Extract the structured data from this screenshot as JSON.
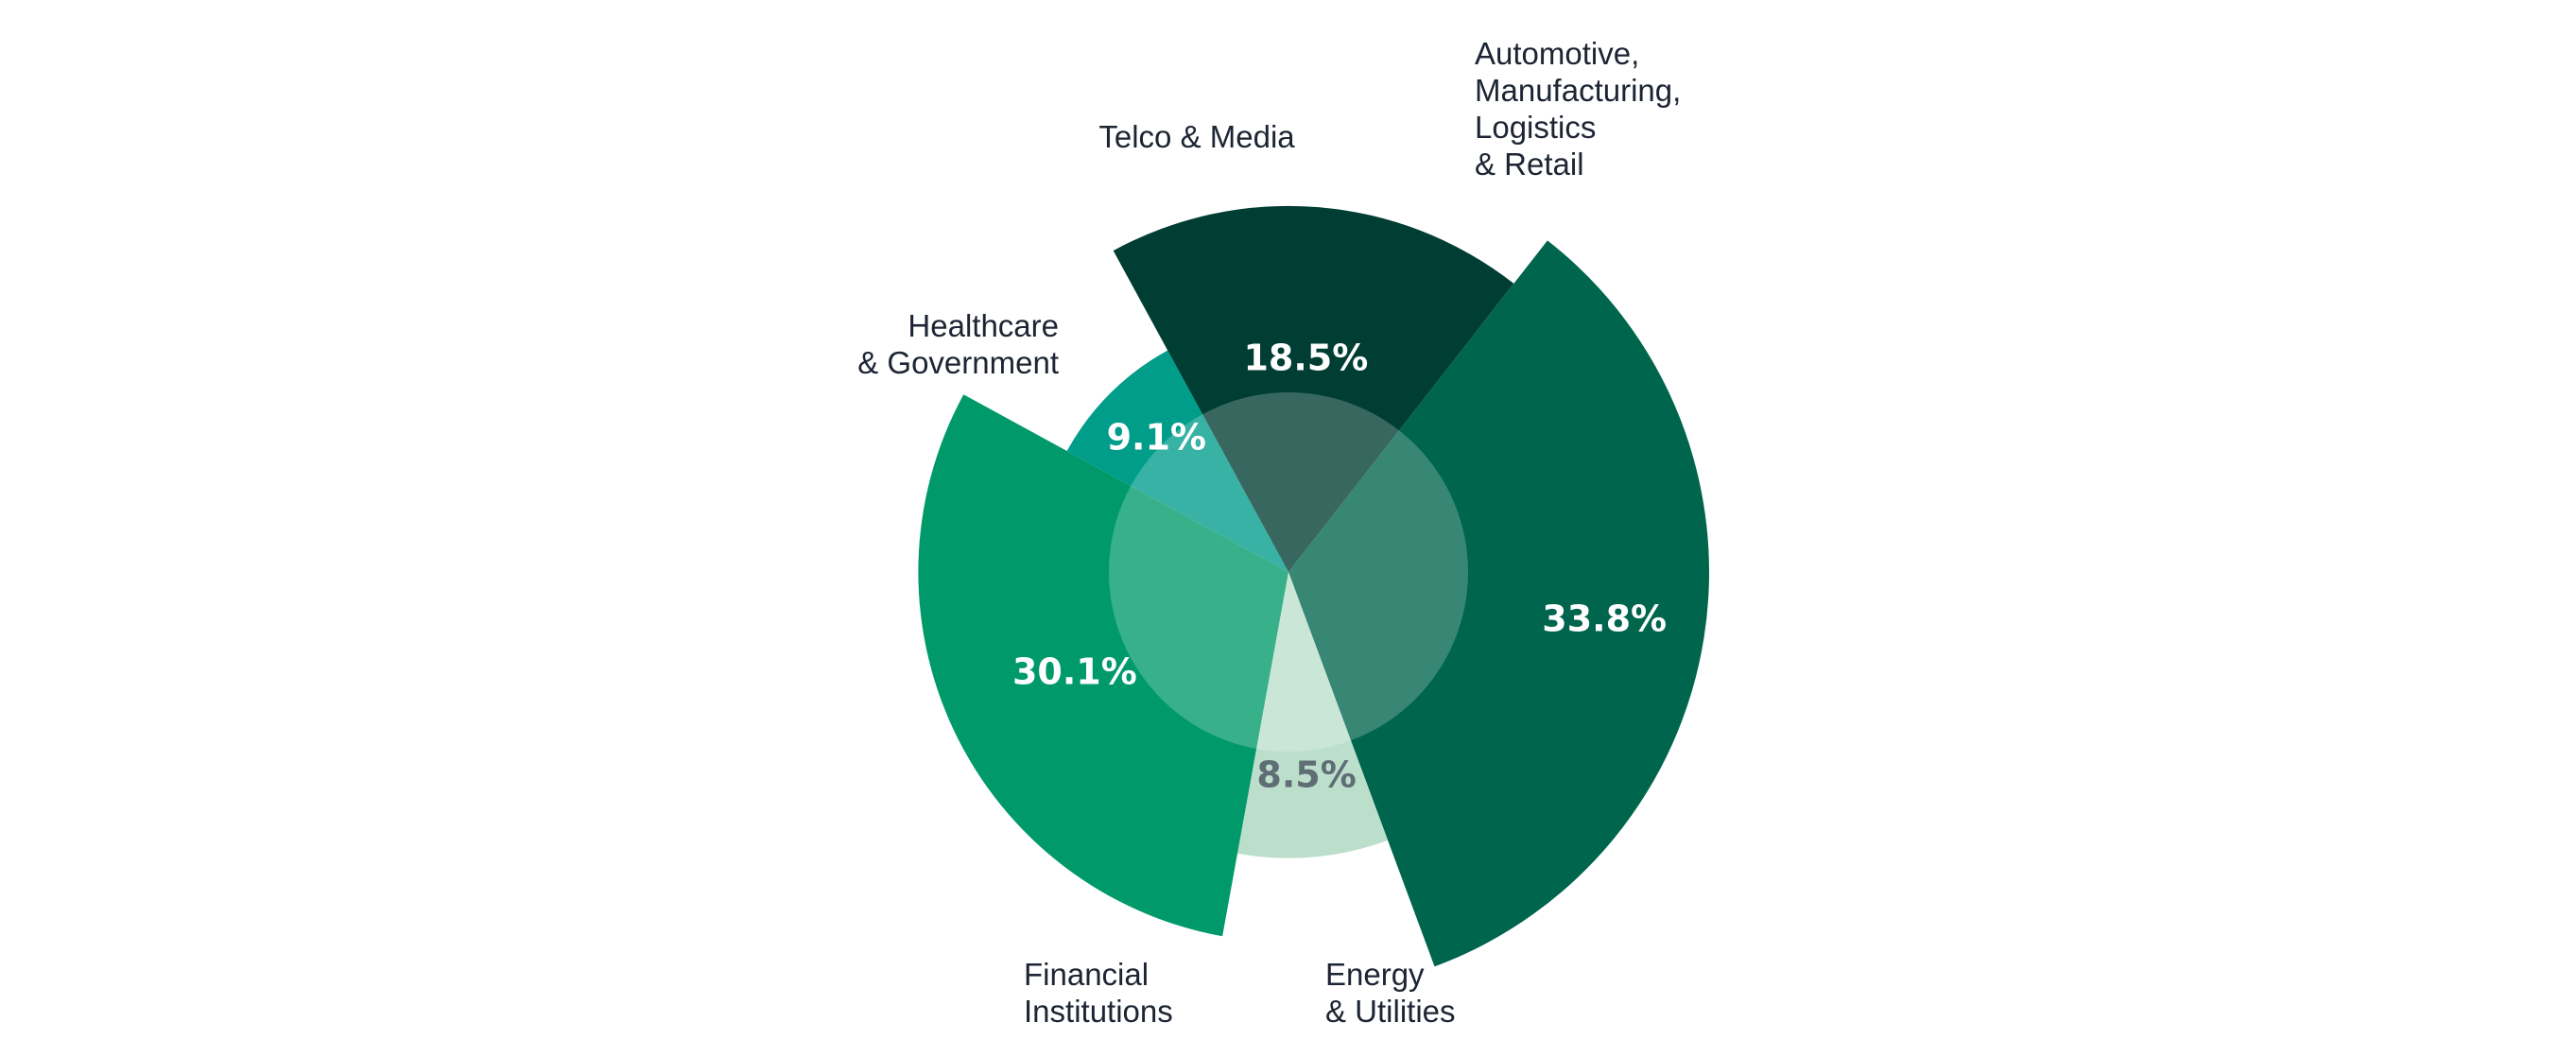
{
  "chart_data": {
    "type": "pie",
    "variant": "variable-radius",
    "start_angle_deg": 38,
    "center_overlay": true,
    "slices": [
      {
        "category": "Automotive, Manufacturing, Logistics & Retail",
        "label_lines": [
          "Automotive,",
          "Manufacturing,",
          "Logistics",
          "& Retail"
        ],
        "value": 33.8,
        "value_label": "33.8%",
        "color": "#00654d",
        "text_color": "#ffffff",
        "radius_scale": 1.0
      },
      {
        "category": "Energy & Utilities",
        "label_lines": [
          "Energy",
          "& Utilities"
        ],
        "value": 8.5,
        "value_label": "8.5%",
        "color": "#bcdfcc",
        "text_color": "#5f6d74",
        "radius_scale": 0.68
      },
      {
        "category": "Financial Institutions",
        "label_lines": [
          "Financial",
          "Institutions"
        ],
        "value": 30.1,
        "value_label": "30.1%",
        "color": "#009a6a",
        "text_color": "#ffffff",
        "radius_scale": 0.88
      },
      {
        "category": "Healthcare & Government",
        "label_lines": [
          "Healthcare",
          "& Government"
        ],
        "value": 9.1,
        "value_label": "9.1%",
        "color": "#009d8b",
        "text_color": "#ffffff",
        "radius_scale": 0.6
      },
      {
        "category": "Telco & Media",
        "label_lines": [
          "Telco & Media"
        ],
        "value": 18.5,
        "value_label": "18.5%",
        "color": "#003d33",
        "text_color": "#ffffff",
        "radius_scale": 0.87
      }
    ]
  }
}
